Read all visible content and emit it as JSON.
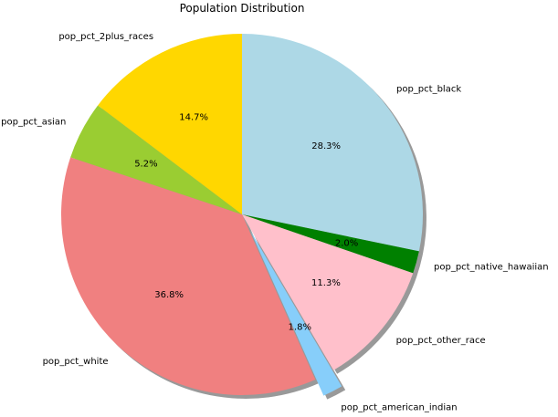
{
  "chart_data": {
    "type": "pie",
    "title": "Population Distribution",
    "slices": [
      {
        "label": "pop_pct_black",
        "value": 28.3,
        "pct_label": "28.3%",
        "color": "#add8e6",
        "explode": false
      },
      {
        "label": "pop_pct_native_hawaiian",
        "value": 2.0,
        "pct_label": "2.0%",
        "color": "#008000",
        "explode": false
      },
      {
        "label": "pop_pct_other_race",
        "value": 11.3,
        "pct_label": "11.3%",
        "color": "#ffc0cb",
        "explode": false
      },
      {
        "label": "pop_pct_american_indian",
        "value": 1.8,
        "pct_label": "1.8%",
        "color": "#87cefa",
        "explode": true
      },
      {
        "label": "pop_pct_white",
        "value": 36.8,
        "pct_label": "36.8%",
        "color": "#f08080",
        "explode": false
      },
      {
        "label": "pop_pct_asian",
        "value": 5.2,
        "pct_label": "5.2%",
        "color": "#9acd32",
        "explode": false
      },
      {
        "label": "pop_pct_2plus_races",
        "value": 14.7,
        "pct_label": "14.7%",
        "color": "#ffd700",
        "explode": false
      }
    ],
    "start_angle": 90,
    "direction": "clockwise",
    "shadow": true
  }
}
